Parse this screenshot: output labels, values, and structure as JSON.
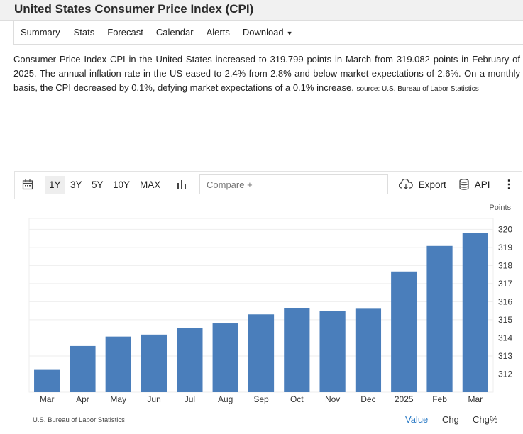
{
  "header": {
    "title": "United States Consumer Price Index (CPI)"
  },
  "tabs": [
    {
      "label": "Summary"
    },
    {
      "label": "Stats"
    },
    {
      "label": "Forecast"
    },
    {
      "label": "Calendar"
    },
    {
      "label": "Alerts"
    },
    {
      "label": "Download"
    }
  ],
  "description": {
    "text": "Consumer Price Index CPI in the United States increased to 319.799 points in March from 319.082 points in February of 2025. The annual inflation rate in the US eased to 2.4% from 2.8% and below market expectations of 2.6%. On a monthly basis, the CPI decreased by 0.1%, defying market expectations of a 0.1% increase.",
    "source": "source: U.S. Bureau of Labor Statistics"
  },
  "toolbar": {
    "ranges": [
      "1Y",
      "3Y",
      "5Y",
      "10Y",
      "MAX"
    ],
    "selected_range": "1Y",
    "compare_placeholder": "Compare +",
    "export_label": "Export",
    "api_label": "API"
  },
  "footer": {
    "source": "U.S. Bureau of Labor Statistics",
    "view_buttons": [
      "Value",
      "Chg",
      "Chg%"
    ],
    "active_view": "Value"
  },
  "chart_data": {
    "type": "bar",
    "categories": [
      "Mar",
      "Apr",
      "May",
      "Jun",
      "Jul",
      "Aug",
      "Sep",
      "Oct",
      "Nov",
      "Dec",
      "2025",
      "Feb",
      "Mar"
    ],
    "values": [
      312.23,
      313.55,
      314.07,
      314.18,
      314.54,
      314.8,
      315.3,
      315.66,
      315.49,
      315.61,
      317.67,
      319.08,
      319.8
    ],
    "ylabel": "Points",
    "ylim": [
      311.0,
      320.6
    ],
    "yticks": [
      312,
      313,
      314,
      315,
      316,
      317,
      318,
      319,
      320
    ],
    "grid": true,
    "bar_color": "#4a7ebb"
  }
}
